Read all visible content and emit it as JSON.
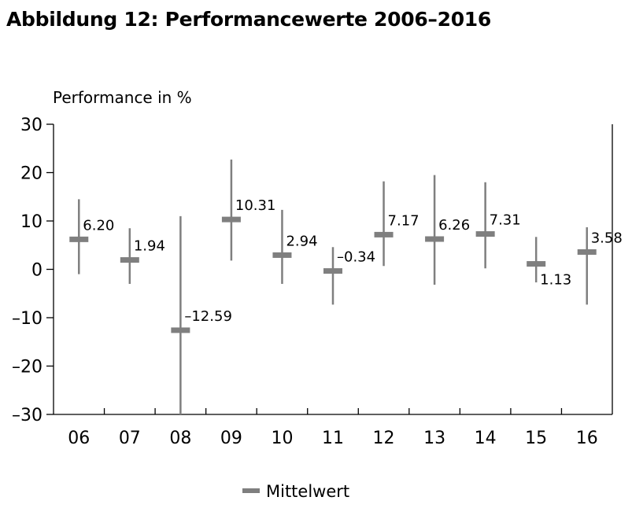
{
  "chart_data": {
    "type": "range_bar",
    "title": "Abbildung 12: Performancewerte 2006–2016",
    "ylabel": "Performance in %",
    "xlabel": "",
    "ylim": [
      -30,
      30
    ],
    "yticks": [
      30,
      20,
      10,
      0,
      -10,
      -20,
      -30
    ],
    "ytick_labels": [
      "30",
      "20",
      "10",
      "0",
      "–10",
      "–20",
      "–30"
    ],
    "categories": [
      "06",
      "07",
      "08",
      "09",
      "10",
      "11",
      "12",
      "13",
      "14",
      "15",
      "16"
    ],
    "series": [
      {
        "name": "Mittelwert",
        "values": [
          6.2,
          1.94,
          -12.59,
          10.31,
          2.94,
          -0.34,
          7.17,
          6.26,
          7.31,
          1.13,
          3.58
        ],
        "value_labels": [
          "6.20",
          "1.94",
          "–12.59",
          "10.31",
          "2.94",
          "–0.34",
          "7.17",
          "6.26",
          "7.31",
          "1.13",
          "3.58"
        ]
      }
    ],
    "ranges": {
      "high": [
        14.5,
        8.5,
        11,
        22.7,
        12.3,
        4.6,
        18.2,
        19.5,
        18,
        6.7,
        8.7
      ],
      "low": [
        -1,
        -3,
        -30,
        1.8,
        -3,
        -7.3,
        0.7,
        -3.2,
        0.2,
        -2.7,
        -7.3
      ]
    },
    "legend": {
      "label": "Mittelwert",
      "position": "bottom-center"
    },
    "grid": false,
    "colors": {
      "marker": "#7f7f7f",
      "axis": "#000000"
    }
  }
}
